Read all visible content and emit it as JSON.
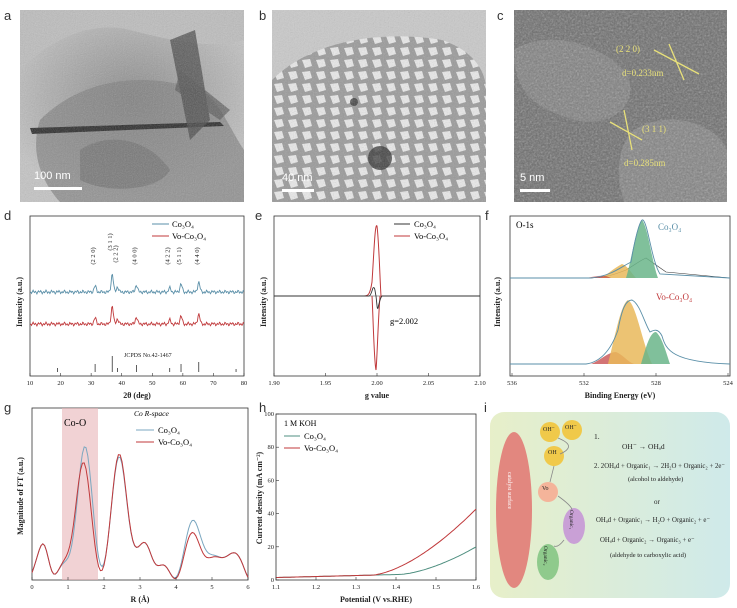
{
  "figure": {
    "panel_letters": [
      "a",
      "b",
      "c",
      "d",
      "e",
      "f",
      "g",
      "h",
      "i"
    ],
    "a": {
      "scale_bar": "100 nm"
    },
    "b": {
      "scale_bar": "40 nm"
    },
    "c": {
      "scale_bar": "5 nm",
      "annotations": [
        "(2 2 0)",
        "d=0.233nm",
        "(3 1 1)",
        "d=0.285nm"
      ]
    },
    "colors": {
      "co3o4": "#5a8fa8",
      "vo": "#c0393b",
      "green": "#6ab58a",
      "orange": "#e9b85a",
      "pink": "#e8b4b8"
    }
  },
  "chart_data": [
    {
      "panel": "d",
      "type": "line",
      "series": [
        {
          "name": "Co3O4"
        },
        {
          "name": "Vo-Co3O4"
        }
      ],
      "legend": [
        "Co₃O₄",
        "Vo-Co₃O₄"
      ],
      "peak_labels": [
        "(2 2 0)",
        "(3 1 1)",
        "(2 2 2)",
        "(4 0 0)",
        "(4 2 2)",
        "(5 1 1)",
        "(4 4 0)"
      ],
      "reference": "JCPDS No.42-1467",
      "xlabel": "2θ (deg)",
      "ylabel": "Intensity (a.u.)",
      "xticks": [
        "10",
        "20",
        "30",
        "40",
        "50",
        "60",
        "70",
        "80"
      ],
      "xlim": [
        10,
        80
      ]
    },
    {
      "panel": "e",
      "type": "line",
      "legend": [
        "Co₃O₄",
        "Vo-Co₃O₄"
      ],
      "annotation": "g=2.002",
      "xlabel": "g value",
      "ylabel": "Intensity (a.u.)",
      "xticks": [
        "1.90",
        "1.95",
        "2.00",
        "2.05",
        "2.10"
      ],
      "xlim": [
        1.9,
        2.1
      ]
    },
    {
      "panel": "f",
      "type": "area",
      "title": "O-1s",
      "labels": [
        "Co₃O₄",
        "Vo-Co₃O₄"
      ],
      "xlabel": "Binding Energy (eV)",
      "ylabel": "Intensity (a.u.)",
      "xticks": [
        "536",
        "532",
        "528",
        "524"
      ]
    },
    {
      "panel": "g",
      "type": "line",
      "title": "Co  R-space",
      "legend": [
        "Co₃O₄",
        "Vo-Co₃O₄"
      ],
      "region_label": "Co-O",
      "xlabel": "R (Å)",
      "ylabel": "Magnitude of FT (a.u.)",
      "xticks": [
        "0",
        "1",
        "2",
        "3",
        "4",
        "5",
        "6"
      ],
      "xlim": [
        0,
        6
      ]
    },
    {
      "panel": "h",
      "type": "line",
      "title": "1 M KOH",
      "legend": [
        "Co₃O₄",
        "Vo-Co₃O₄"
      ],
      "xlabel": "Potential (V vs.RHE)",
      "ylabel": "Current density (mA cm⁻²)",
      "xticks": [
        "1.1",
        "1.2",
        "1.3",
        "1.4",
        "1.5",
        "1.6"
      ],
      "yticks": [
        "0",
        "20",
        "40",
        "60",
        "80",
        "100"
      ],
      "xlim": [
        1.1,
        1.6
      ],
      "ylim": [
        0,
        100
      ]
    }
  ],
  "scheme_i": {
    "steps": [
      "1.",
      "OH⁻ → OHₐd",
      "2.  2OHₐd + Organic₁ → 2H₂O + Organic₂ + 2e⁻",
      "(alcohol to aldehyde)",
      "or",
      "OHₐd + Organic₁ → H₂O + Organic₂ + e⁻",
      "OHₐd + Organic₂ → Organic₃ + e⁻",
      "(aldehyde to carboxylic acid)"
    ],
    "bubbles": [
      "OH⁻",
      "OH⁻",
      "OH",
      "Vo",
      "Organic₁",
      "Organic₂",
      "catalyst surface"
    ]
  }
}
